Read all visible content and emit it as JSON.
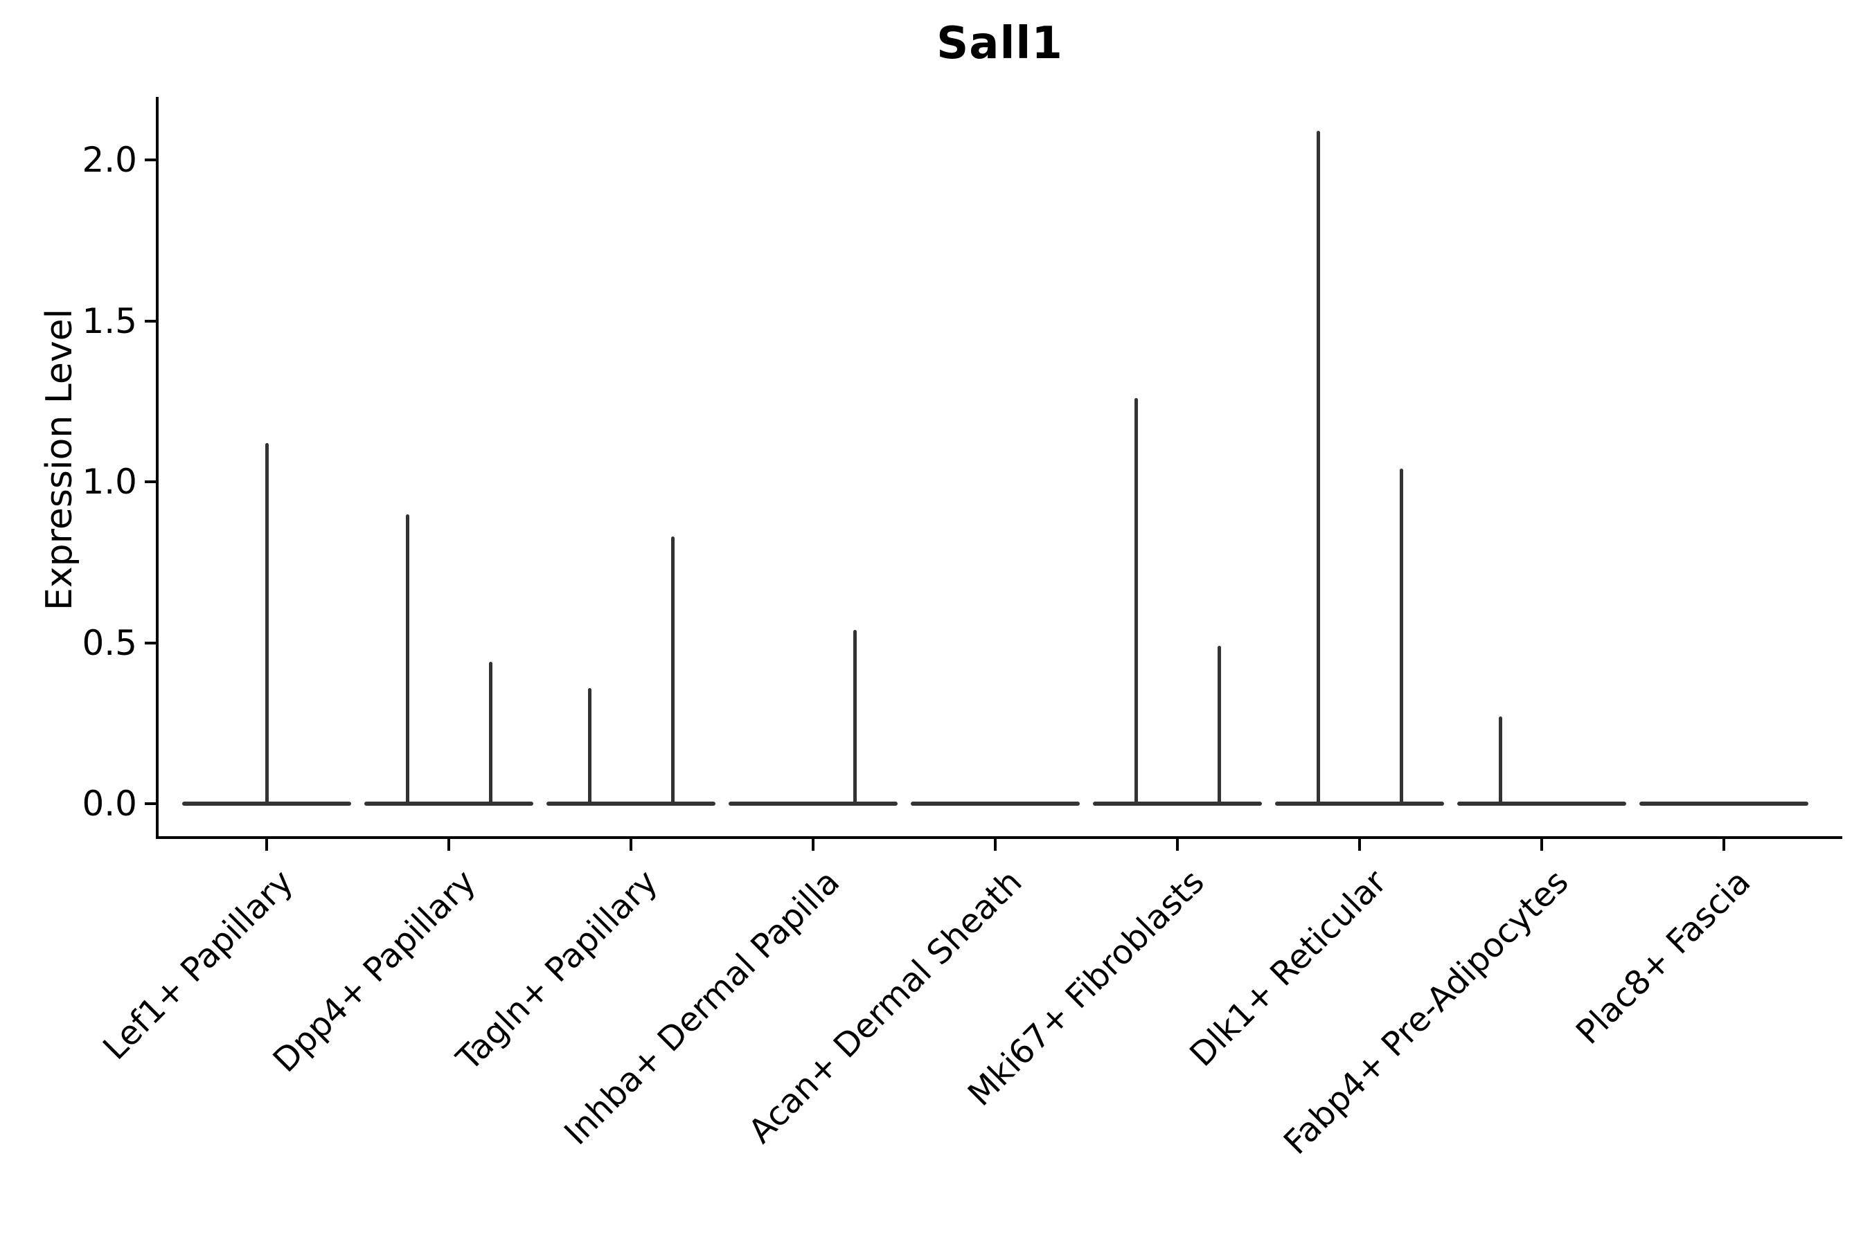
{
  "chart_data": {
    "type": "violin",
    "title": "Sall1",
    "xlabel": "",
    "ylabel": "Expression Level",
    "ylim": [
      -0.1,
      2.24
    ],
    "ytick_values": [
      0.0,
      0.5,
      1.0,
      1.5,
      2.0
    ],
    "grid": false,
    "legend": "none",
    "line_color": "#333333",
    "axis_color": "#000000",
    "baseline_value": 0.0,
    "categories": [
      "Lef1+ Papillary",
      "Dpp4+ Papillary",
      "Tagln+ Papillary",
      "Inhba+ Dermal Papilla",
      "Acan+ Dermal Sheath",
      "Mki67+ Fibroblasts",
      "Dlk1+ Reticular",
      "Fabp4+ Pre-Adipocytes",
      "Plac8+ Fascia"
    ],
    "violins": [
      {
        "category": "Lef1+ Papillary",
        "spikes": [
          {
            "pos": "center",
            "max": 1.12
          }
        ]
      },
      {
        "category": "Dpp4+ Papillary",
        "spikes": [
          {
            "pos": "left",
            "max": 0.9
          },
          {
            "pos": "right",
            "max": 0.44
          }
        ]
      },
      {
        "category": "Tagln+ Papillary",
        "spikes": [
          {
            "pos": "left",
            "max": 0.36
          },
          {
            "pos": "right",
            "max": 0.83
          }
        ]
      },
      {
        "category": "Inhba+ Dermal Papilla",
        "spikes": [
          {
            "pos": "right",
            "max": 0.54
          }
        ]
      },
      {
        "category": "Acan+ Dermal Sheath",
        "spikes": []
      },
      {
        "category": "Mki67+ Fibroblasts",
        "spikes": [
          {
            "pos": "left",
            "max": 1.26
          },
          {
            "pos": "right",
            "max": 0.49
          }
        ]
      },
      {
        "category": "Dlk1+ Reticular",
        "spikes": [
          {
            "pos": "left",
            "max": 2.09
          },
          {
            "pos": "right",
            "max": 1.04
          }
        ]
      },
      {
        "category": "Fabp4+ Pre-Adipocytes",
        "spikes": [
          {
            "pos": "left",
            "max": 0.27
          }
        ]
      },
      {
        "category": "Plac8+ Fascia",
        "spikes": []
      }
    ]
  }
}
